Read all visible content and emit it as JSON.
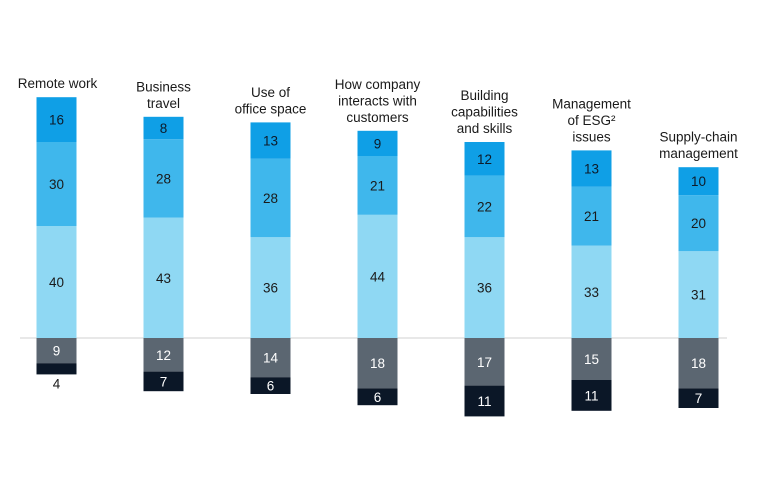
{
  "chart_data": {
    "type": "bar",
    "stacked": true,
    "diverging": true,
    "categories": [
      [
        "Remote work"
      ],
      [
        "Business",
        "travel"
      ],
      [
        "Use of",
        "office space"
      ],
      [
        "How company",
        "interacts with",
        "customers"
      ],
      [
        "Building",
        "capabilities",
        "and skills"
      ],
      [
        "Management",
        "of ESG²",
        "issues"
      ],
      [
        "Supply-chain",
        "management"
      ]
    ],
    "positive_series": [
      {
        "values": [
          40,
          43,
          36,
          44,
          36,
          33,
          31
        ],
        "color": "#8fd8f3",
        "text_color": "#1a1a1a"
      },
      {
        "values": [
          30,
          28,
          28,
          21,
          22,
          21,
          20
        ],
        "color": "#3fb7ec",
        "text_color": "#1a1a1a"
      },
      {
        "values": [
          16,
          8,
          13,
          9,
          12,
          13,
          10
        ],
        "color": "#0f9fe6",
        "text_color": "#0d1b2a"
      }
    ],
    "negative_series": [
      {
        "values": [
          9,
          12,
          14,
          18,
          17,
          15,
          18
        ],
        "color": "#5b6671",
        "text_color": "#ffffff"
      },
      {
        "values": [
          4,
          7,
          6,
          6,
          11,
          11,
          7
        ],
        "color": "#0b1727",
        "text_color": "#ffffff"
      }
    ],
    "legend": "none",
    "grid": false
  }
}
